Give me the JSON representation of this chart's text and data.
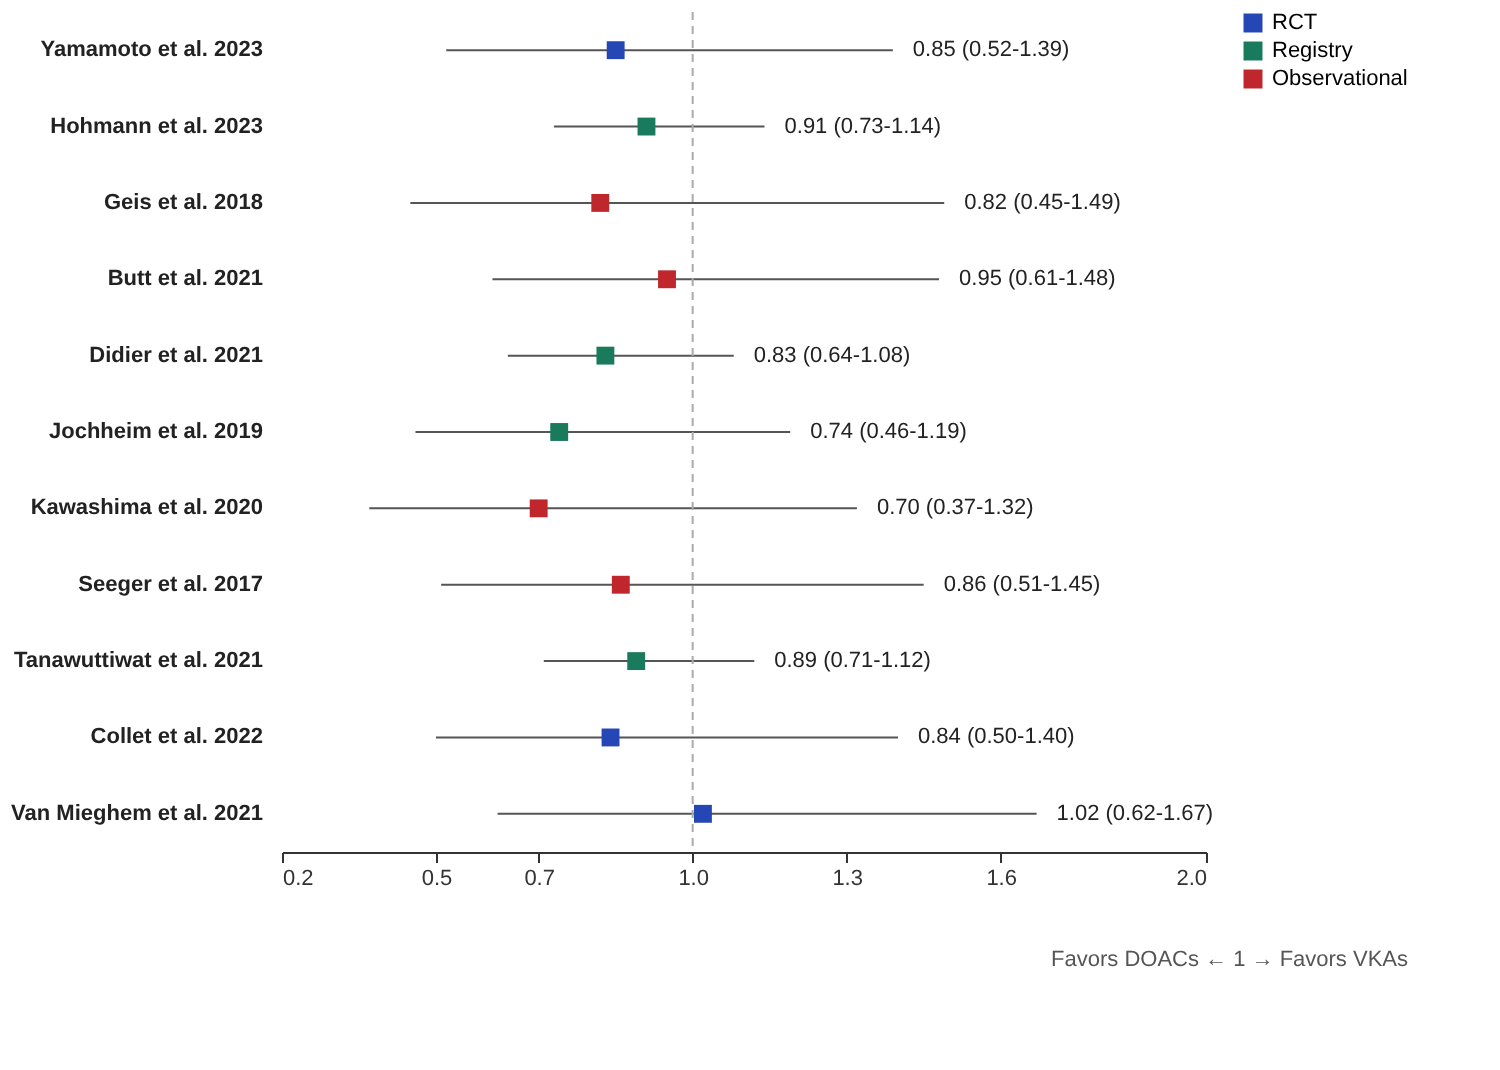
{
  "chart_data": {
    "type": "scatter",
    "orientation": "horizontal",
    "categories": [
      "Yamamoto et al. 2023",
      "Hohmann et al. 2023",
      "Geis et al. 2018",
      "Butt et al. 2021",
      "Didier et al. 2021",
      "Jochheim et al. 2019",
      "Kawashima et al. 2020",
      "Seeger et al. 2017",
      "Tanawuttiwat et al. 2021",
      "Collet et al. 2022",
      "Van Mieghem et al. 2021"
    ],
    "series": [
      {
        "name": "RCT",
        "color": "#2546b5",
        "values": [
          0.85,
          null,
          null,
          null,
          null,
          null,
          null,
          null,
          null,
          0.84,
          1.02
        ],
        "errors": [
          [
            0.52,
            1.39
          ],
          null,
          null,
          null,
          null,
          null,
          null,
          null,
          null,
          [
            0.5,
            1.4
          ],
          [
            0.62,
            1.67
          ]
        ]
      },
      {
        "name": "Registry",
        "color": "#1a7a5c",
        "values": [
          null,
          0.91,
          null,
          null,
          0.83,
          0.74,
          null,
          null,
          0.89,
          null,
          null
        ],
        "errors": [
          null,
          [
            0.73,
            1.14
          ],
          null,
          null,
          [
            0.64,
            1.08
          ],
          [
            0.46,
            1.19
          ],
          null,
          null,
          [
            0.71,
            1.12
          ],
          null,
          null
        ]
      },
      {
        "name": "Observational",
        "color": "#c0272d",
        "values": [
          null,
          null,
          0.82,
          0.95,
          null,
          null,
          0.7,
          0.86,
          null,
          null,
          null
        ],
        "errors": [
          null,
          null,
          [
            0.45,
            1.49
          ],
          [
            0.61,
            1.48
          ],
          null,
          null,
          [
            0.37,
            1.32
          ],
          [
            0.51,
            1.45
          ],
          null,
          null,
          null
        ]
      }
    ],
    "xlim": [
      0.2,
      2.0
    ],
    "xticks": [
      0.2,
      0.5,
      0.7,
      {
        "value": 1.0,
        "label": "1.0"
      },
      1.3,
      1.6,
      {
        "value": 2.0,
        "label": "2.0"
      }
    ],
    "ref_lines": [
      {
        "axis": "x",
        "value": 1.0,
        "color": "#aaaaaa",
        "line_style": "dashed"
      }
    ],
    "annotations": [
      {
        "text": "0.85 (0.52-1.39)",
        "x": 1.39,
        "y": "Yamamoto et al. 2023"
      },
      {
        "text": "0.91 (0.73-1.14)",
        "x": 1.14,
        "y": "Hohmann et al. 2023"
      },
      {
        "text": "0.82 (0.45-1.49)",
        "x": 1.49,
        "y": "Geis et al. 2018"
      },
      {
        "text": "0.95 (0.61-1.48)",
        "x": 1.48,
        "y": "Butt et al. 2021"
      },
      {
        "text": "0.83 (0.64-1.08)",
        "x": 1.08,
        "y": "Didier et al. 2021"
      },
      {
        "text": "0.74 (0.46-1.19)",
        "x": 1.19,
        "y": "Jochheim et al. 2019"
      },
      {
        "text": "0.70 (0.37-1.32)",
        "x": 1.32,
        "y": "Kawashima et al. 2020"
      },
      {
        "text": "0.86 (0.51-1.45)",
        "x": 1.45,
        "y": "Seeger et al. 2017"
      },
      {
        "text": "0.89 (0.71-1.12)",
        "x": 1.12,
        "y": "Tanawuttiwat et al. 2021"
      },
      {
        "text": "0.84 (0.50-1.40)",
        "x": 1.4,
        "y": "Collet et al. 2022"
      },
      {
        "text": "1.02 (0.62-1.67)",
        "x": 1.67,
        "y": "Van Mieghem et al. 2021"
      },
      "Favors DOACs ← 1 → Favors VKAs"
    ],
    "marker": "square",
    "grid": false,
    "legend": "top right"
  }
}
